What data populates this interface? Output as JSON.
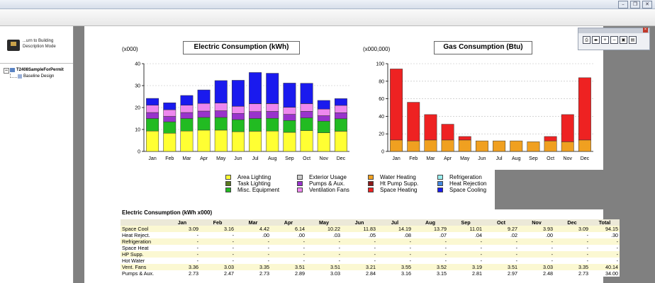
{
  "sidebar": {
    "return_button_label": "...urn to Building Description Mode",
    "tree": {
      "root": "T2408SampleForPermit",
      "child": "Baseline Design"
    }
  },
  "viewer_toolbar": {
    "icons": [
      "print-icon",
      "page-nav-icon",
      "zoom-in-icon",
      "zoom-out-icon",
      "save-icon",
      "export-icon"
    ]
  },
  "charts": {
    "electric": {
      "title": "Electric Consumption (kWh)",
      "unit": "(x000)"
    },
    "gas": {
      "title": "Gas Consumption (Btu)",
      "unit": "(x000,000)"
    }
  },
  "chart_data": [
    {
      "type": "bar",
      "stacked": true,
      "title": "Electric Consumption (kWh)",
      "unit_label": "(x000)",
      "categories": [
        "Jan",
        "Feb",
        "Mar",
        "Apr",
        "May",
        "Jun",
        "Jul",
        "Aug",
        "Sep",
        "Oct",
        "Nov",
        "Dec"
      ],
      "ylim": [
        0,
        40
      ],
      "yticks": [
        0,
        10,
        20,
        30,
        40
      ],
      "grid": true,
      "series": [
        {
          "name": "Area Lighting",
          "color": "#ffff33",
          "values": [
            9.3,
            8.3,
            9.3,
            9.7,
            9.7,
            9.0,
            9.2,
            9.3,
            8.7,
            9.5,
            8.5,
            9.2
          ]
        },
        {
          "name": "Task Lighting",
          "color": "#5c7a1e",
          "values": [
            0,
            0,
            0,
            0,
            0,
            0,
            0,
            0,
            0,
            0,
            0,
            0
          ]
        },
        {
          "name": "Misc. Equipment",
          "color": "#22bb22",
          "values": [
            5.7,
            5.2,
            5.7,
            5.8,
            5.8,
            5.5,
            5.8,
            5.8,
            5.4,
            5.8,
            5.3,
            5.7
          ]
        },
        {
          "name": "Exterior Usage",
          "color": "#cccccc",
          "values": [
            0,
            0,
            0,
            0,
            0,
            0,
            0,
            0,
            0,
            0,
            0,
            0
          ]
        },
        {
          "name": "Pumps & Aux.",
          "color": "#9933cc",
          "values": [
            2.73,
            2.47,
            2.73,
            2.89,
            3.03,
            2.84,
            3.16,
            3.15,
            2.81,
            2.97,
            2.48,
            2.73
          ]
        },
        {
          "name": "Ventilation Fans",
          "color": "#ee88ee",
          "values": [
            3.36,
            3.03,
            3.35,
            3.51,
            3.51,
            3.21,
            3.55,
            3.52,
            3.19,
            3.51,
            3.03,
            3.35
          ]
        },
        {
          "name": "Water Heating",
          "color": "#f0a020",
          "values": [
            0,
            0,
            0,
            0,
            0,
            0,
            0,
            0,
            0,
            0,
            0,
            0
          ]
        },
        {
          "name": "Ht Pump Supp.",
          "color": "#8b1a1a",
          "values": [
            0,
            0,
            0,
            0,
            0,
            0,
            0,
            0,
            0,
            0,
            0,
            0
          ]
        },
        {
          "name": "Space Heating",
          "color": "#ee2222",
          "values": [
            0,
            0,
            0,
            0,
            0,
            0,
            0,
            0,
            0,
            0,
            0,
            0
          ]
        },
        {
          "name": "Refrigeration",
          "color": "#99eeee",
          "values": [
            0,
            0,
            0,
            0,
            0,
            0,
            0,
            0,
            0,
            0,
            0,
            0
          ]
        },
        {
          "name": "Heat Rejection",
          "color": "#4488dd",
          "values": [
            0,
            0,
            0,
            0,
            0.03,
            0.05,
            0.08,
            0.07,
            0.04,
            0.02,
            0,
            0
          ]
        },
        {
          "name": "Space Cooling",
          "color": "#1a1aee",
          "values": [
            3.09,
            3.16,
            4.42,
            6.14,
            10.22,
            11.83,
            14.19,
            13.79,
            11.01,
            9.27,
            3.93,
            3.09
          ]
        }
      ]
    },
    {
      "type": "bar",
      "stacked": true,
      "title": "Gas Consumption (Btu)",
      "unit_label": "(x000,000)",
      "categories": [
        "Jan",
        "Feb",
        "Mar",
        "Apr",
        "May",
        "Jun",
        "Jul",
        "Aug",
        "Sep",
        "Oct",
        "Nov",
        "Dec"
      ],
      "ylim": [
        0,
        100
      ],
      "yticks": [
        0,
        20,
        40,
        60,
        80,
        100
      ],
      "grid": true,
      "series": [
        {
          "name": "Water Heating",
          "color": "#f0a020",
          "values": [
            13,
            12,
            13,
            13,
            13,
            12,
            12,
            12,
            11,
            12,
            11,
            13
          ]
        },
        {
          "name": "Space Heating",
          "color": "#ee2222",
          "values": [
            81,
            44,
            29,
            18,
            4,
            0,
            0,
            0,
            0,
            5,
            31,
            71
          ]
        }
      ]
    }
  ],
  "legend": [
    {
      "label": "Area Lighting",
      "color": "#ffff33"
    },
    {
      "label": "Task Lighting",
      "color": "#5c7a1e"
    },
    {
      "label": "Misc. Equipment",
      "color": "#22bb22"
    },
    {
      "label": "Exterior Usage",
      "color": "#cccccc"
    },
    {
      "label": "Pumps & Aux.",
      "color": "#9933cc"
    },
    {
      "label": "Ventilation Fans",
      "color": "#ee88ee"
    },
    {
      "label": "Water Heating",
      "color": "#f0a020"
    },
    {
      "label": "Ht Pump Supp.",
      "color": "#8b1a1a"
    },
    {
      "label": "Space Heating",
      "color": "#ee2222"
    },
    {
      "label": "Refrigeration",
      "color": "#99eeee"
    },
    {
      "label": "Heat Rejection",
      "color": "#4488dd"
    },
    {
      "label": "Space Cooling",
      "color": "#1a1aee"
    }
  ],
  "table": {
    "title": "Electric Consumption (kWh x000)",
    "headers": [
      "",
      "Jan",
      "Feb",
      "Mar",
      "Apr",
      "May",
      "Jun",
      "Jul",
      "Aug",
      "Sep",
      "Oct",
      "Nov",
      "Dec",
      "Total"
    ],
    "rows": [
      [
        "Space Cool",
        "3.09",
        "3.16",
        "4.42",
        "6.14",
        "10.22",
        "11.83",
        "14.19",
        "13.79",
        "11.01",
        "9.27",
        "3.93",
        "3.09",
        "94.15"
      ],
      [
        "Heat Reject.",
        "-",
        "-",
        ".00",
        ".00",
        ".03",
        ".05",
        ".08",
        ".07",
        ".04",
        ".02",
        ".00",
        "-",
        ".30"
      ],
      [
        "Refrigeration",
        "-",
        "-",
        "-",
        "-",
        "-",
        "-",
        "-",
        "-",
        "-",
        "-",
        "-",
        "-",
        "-"
      ],
      [
        "Space Heat",
        "-",
        "-",
        "-",
        "-",
        "-",
        "-",
        "-",
        "-",
        "-",
        "-",
        "-",
        "-",
        "-"
      ],
      [
        "HP Supp.",
        "-",
        "-",
        "-",
        "-",
        "-",
        "-",
        "-",
        "-",
        "-",
        "-",
        "-",
        "-",
        "-"
      ],
      [
        "Hot Water",
        "-",
        "-",
        "-",
        "-",
        "-",
        "-",
        "-",
        "-",
        "-",
        "-",
        "-",
        "-",
        "-"
      ],
      [
        "Vent. Fans",
        "3.36",
        "3.03",
        "3.35",
        "3.51",
        "3.51",
        "3.21",
        "3.55",
        "3.52",
        "3.19",
        "3.51",
        "3.03",
        "3.35",
        "40.14"
      ],
      [
        "Pumps & Aux.",
        "2.73",
        "2.47",
        "2.73",
        "2.89",
        "3.03",
        "2.84",
        "3.16",
        "3.15",
        "2.81",
        "2.97",
        "2.48",
        "2.73",
        "34.00"
      ]
    ]
  }
}
